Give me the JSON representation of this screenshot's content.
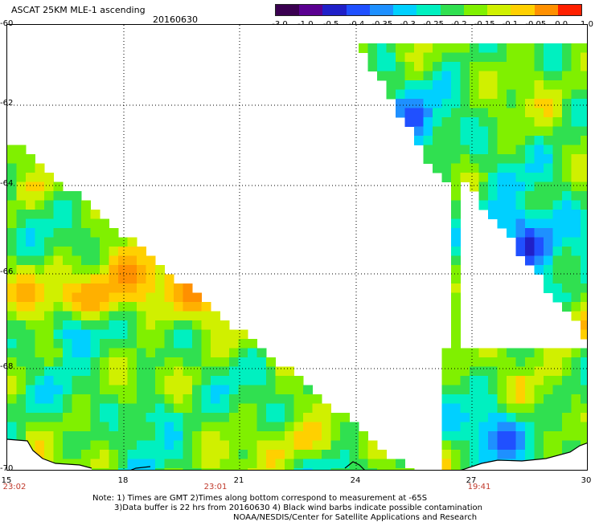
{
  "header": {
    "title": "ASCAT 25KM MLE-1 ascending",
    "date": "20160630"
  },
  "color_scale": {
    "labels": [
      "-3.0",
      "-1.0",
      "-0.5",
      "-0.4",
      "-0.35",
      "-0.3",
      "-0.25",
      "-0.2",
      "-0.15",
      "-0.1",
      "-0.05",
      "0.0",
      "1.0"
    ],
    "colors": [
      "#3a0050",
      "#5a0090",
      "#2020c8",
      "#2050ff",
      "#1e90ff",
      "#00d0ff",
      "#00f0c0",
      "#30e050",
      "#80f000",
      "#d0f000",
      "#ffd000",
      "#ff9000",
      "#ff2000"
    ]
  },
  "map": {
    "lat_labels": [
      "-60",
      "-62",
      "-64",
      "-66",
      "-68",
      "-70"
    ],
    "lon_labels": [
      "15",
      "18",
      "21",
      "24",
      "27",
      "30"
    ],
    "time_labels": [
      "23:02",
      "23:01",
      "19:41"
    ]
  },
  "notes": {
    "line1": "Note: 1) Times are GMT 2)Times along bottom correspond to measurement at -65S",
    "line2": "3)Data buffer is 22 hrs from 20160630 4) Black wind barbs indicate possible contamination",
    "line3": "NOAA/NESDIS/Center for Satellite Applications and Research"
  }
}
